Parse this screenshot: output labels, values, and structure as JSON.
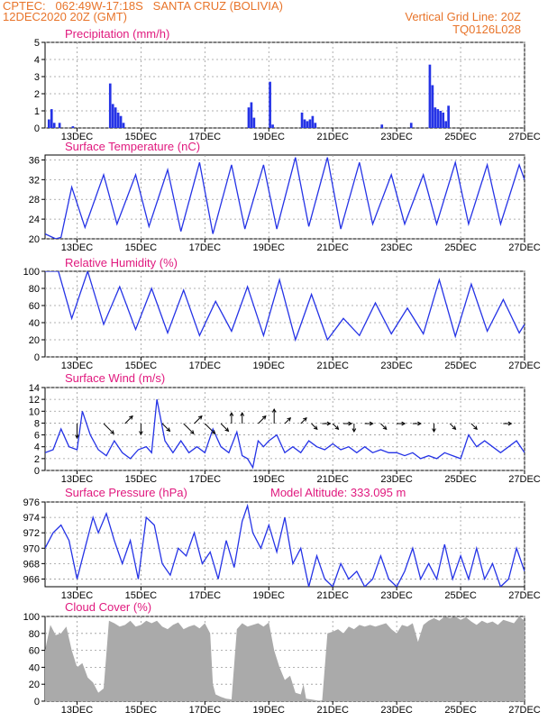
{
  "header": {
    "line1_left": "CPTEC:   062:49W-17:18S   SANTA CRUZ (BOLIVIA)",
    "line2_left": "12DEC2020 20Z (GMT)",
    "line2_right": "Vertical Grid Line: 20Z",
    "line3_right": "TQ0126L028"
  },
  "colors": {
    "header": "#e8742a",
    "title": "#e0197e",
    "series": "#2533e6",
    "cloud": "#aaaaaa",
    "grid": "#999999"
  },
  "x_ticks": [
    "13DEC",
    "15DEC",
    "17DEC",
    "19DEC",
    "21DEC",
    "23DEC",
    "25DEC",
    "27DEC"
  ],
  "chart_data": [
    {
      "type": "bar",
      "title": "Precipitation (mm/h)",
      "ylim": [
        0,
        5
      ],
      "yticks": [
        0,
        1,
        2,
        3,
        4,
        5
      ],
      "x_range": [
        0,
        180
      ],
      "grid": true,
      "points": [
        [
          1,
          0.5
        ],
        [
          2,
          1.1
        ],
        [
          3,
          0.3
        ],
        [
          5,
          0.3
        ],
        [
          10,
          0.1
        ],
        [
          24,
          2.6
        ],
        [
          25,
          1.4
        ],
        [
          26,
          1.2
        ],
        [
          27,
          0.9
        ],
        [
          28,
          0.7
        ],
        [
          29,
          0.3
        ],
        [
          76,
          1.2
        ],
        [
          77,
          1.5
        ],
        [
          78,
          0.6
        ],
        [
          84,
          2.7
        ],
        [
          85,
          0.2
        ],
        [
          96,
          0.9
        ],
        [
          97,
          0.5
        ],
        [
          98,
          0.4
        ],
        [
          99,
          0.5
        ],
        [
          100,
          0.7
        ],
        [
          101,
          0.3
        ],
        [
          126,
          0.2
        ],
        [
          137,
          0.3
        ],
        [
          144,
          3.7
        ],
        [
          145,
          2.5
        ],
        [
          146,
          1.2
        ],
        [
          147,
          1.1
        ],
        [
          148,
          1.0
        ],
        [
          149,
          0.9
        ],
        [
          150,
          0.4
        ],
        [
          151,
          1.3
        ]
      ]
    },
    {
      "type": "line",
      "title": "Surface Temperature (nC)",
      "ylim": [
        20,
        37
      ],
      "yticks": [
        20,
        24,
        28,
        32,
        36
      ],
      "x_range": [
        0,
        180
      ],
      "grid": true,
      "points": [
        [
          0,
          21
        ],
        [
          4,
          20
        ],
        [
          6,
          20.3
        ],
        [
          10,
          30.5
        ],
        [
          15,
          22.3
        ],
        [
          22,
          33
        ],
        [
          27,
          23
        ],
        [
          34,
          33
        ],
        [
          39,
          22.5
        ],
        [
          46,
          34
        ],
        [
          51,
          21.5
        ],
        [
          58,
          35.5
        ],
        [
          63,
          21
        ],
        [
          70,
          35
        ],
        [
          75,
          22
        ],
        [
          82,
          35
        ],
        [
          87,
          22
        ],
        [
          94,
          36.5
        ],
        [
          99,
          22.5
        ],
        [
          106,
          36.5
        ],
        [
          111,
          22
        ],
        [
          118,
          35.5
        ],
        [
          123,
          23
        ],
        [
          130,
          33
        ],
        [
          135,
          23
        ],
        [
          142,
          33
        ],
        [
          147,
          23
        ],
        [
          154,
          35.5
        ],
        [
          159,
          23
        ],
        [
          166,
          35
        ],
        [
          171,
          23
        ],
        [
          178,
          35
        ],
        [
          180,
          32
        ]
      ]
    },
    {
      "type": "line",
      "title": "Relative Humidity (%)",
      "ylim": [
        0,
        100
      ],
      "yticks": [
        0,
        20,
        40,
        60,
        80,
        100
      ],
      "x_range": [
        0,
        180
      ],
      "grid": true,
      "points": [
        [
          0,
          100
        ],
        [
          5,
          100
        ],
        [
          10,
          45
        ],
        [
          16,
          100
        ],
        [
          22,
          38
        ],
        [
          28,
          82
        ],
        [
          34,
          32
        ],
        [
          40,
          80
        ],
        [
          46,
          28
        ],
        [
          52,
          78
        ],
        [
          58,
          25
        ],
        [
          64,
          65
        ],
        [
          70,
          30
        ],
        [
          76,
          82
        ],
        [
          82,
          25
        ],
        [
          88,
          90
        ],
        [
          94,
          20
        ],
        [
          100,
          73
        ],
        [
          106,
          20
        ],
        [
          112,
          45
        ],
        [
          118,
          25
        ],
        [
          124,
          63
        ],
        [
          130,
          27
        ],
        [
          136,
          57
        ],
        [
          142,
          27
        ],
        [
          148,
          90
        ],
        [
          154,
          24
        ],
        [
          160,
          85
        ],
        [
          166,
          30
        ],
        [
          172,
          67
        ],
        [
          178,
          28
        ],
        [
          180,
          38
        ]
      ]
    },
    {
      "type": "line",
      "title": "Surface Wind (m/s)",
      "ylim": [
        0,
        14
      ],
      "yticks": [
        0,
        2,
        4,
        6,
        8,
        10,
        12,
        14
      ],
      "x_range": [
        0,
        180
      ],
      "grid": true,
      "points": [
        [
          0,
          3
        ],
        [
          3,
          3.5
        ],
        [
          6,
          7
        ],
        [
          9,
          4
        ],
        [
          12,
          3.5
        ],
        [
          14,
          10
        ],
        [
          17,
          6
        ],
        [
          20,
          3.5
        ],
        [
          23,
          2.5
        ],
        [
          26,
          5
        ],
        [
          29,
          3
        ],
        [
          32,
          2
        ],
        [
          35,
          3.5
        ],
        [
          38,
          4
        ],
        [
          40,
          3
        ],
        [
          42,
          12
        ],
        [
          45,
          5
        ],
        [
          48,
          3
        ],
        [
          51,
          5
        ],
        [
          54,
          3
        ],
        [
          57,
          4
        ],
        [
          60,
          3
        ],
        [
          63,
          7
        ],
        [
          66,
          4
        ],
        [
          69,
          3
        ],
        [
          72,
          6.5
        ],
        [
          74,
          2.5
        ],
        [
          76,
          2
        ],
        [
          78,
          0.5
        ],
        [
          80,
          5
        ],
        [
          82,
          4
        ],
        [
          84,
          5
        ],
        [
          87,
          6
        ],
        [
          90,
          3
        ],
        [
          93,
          4
        ],
        [
          96,
          3
        ],
        [
          99,
          5
        ],
        [
          102,
          4
        ],
        [
          105,
          3.5
        ],
        [
          108,
          4.5
        ],
        [
          111,
          3.5
        ],
        [
          114,
          4
        ],
        [
          117,
          3
        ],
        [
          120,
          4
        ],
        [
          123,
          3
        ],
        [
          126,
          3.5
        ],
        [
          129,
          3
        ],
        [
          132,
          3
        ],
        [
          135,
          2.5
        ],
        [
          138,
          3
        ],
        [
          141,
          2
        ],
        [
          144,
          2.5
        ],
        [
          147,
          2
        ],
        [
          150,
          3
        ],
        [
          153,
          2.5
        ],
        [
          156,
          2
        ],
        [
          159,
          6
        ],
        [
          162,
          4
        ],
        [
          165,
          5
        ],
        [
          168,
          4
        ],
        [
          171,
          3
        ],
        [
          174,
          4
        ],
        [
          177,
          5
        ],
        [
          180,
          3
        ]
      ]
    },
    {
      "type": "line",
      "title": "Surface Pressure (hPa)",
      "annotation": "Model Altitude: 333.095 m",
      "ylim": [
        965,
        976
      ],
      "yticks": [
        966,
        968,
        970,
        972,
        974,
        976
      ],
      "x_range": [
        0,
        180
      ],
      "grid": true,
      "points": [
        [
          0,
          970
        ],
        [
          3,
          972
        ],
        [
          6,
          973
        ],
        [
          9,
          971
        ],
        [
          12,
          966
        ],
        [
          15,
          970
        ],
        [
          18,
          974
        ],
        [
          20,
          972
        ],
        [
          23,
          974.5
        ],
        [
          26,
          971
        ],
        [
          29,
          968
        ],
        [
          32,
          971
        ],
        [
          35,
          966
        ],
        [
          38,
          974
        ],
        [
          41,
          973
        ],
        [
          44,
          968
        ],
        [
          47,
          966.5
        ],
        [
          50,
          970
        ],
        [
          53,
          969
        ],
        [
          56,
          972
        ],
        [
          59,
          968
        ],
        [
          62,
          969.5
        ],
        [
          65,
          966
        ],
        [
          68,
          971
        ],
        [
          71,
          967.5
        ],
        [
          74,
          973.5
        ],
        [
          76,
          975.5
        ],
        [
          78,
          972
        ],
        [
          81,
          970
        ],
        [
          84,
          973
        ],
        [
          87,
          969.5
        ],
        [
          90,
          974
        ],
        [
          93,
          968
        ],
        [
          96,
          970
        ],
        [
          99,
          965
        ],
        [
          102,
          969
        ],
        [
          105,
          966
        ],
        [
          108,
          965
        ],
        [
          111,
          968
        ],
        [
          114,
          966
        ],
        [
          117,
          967
        ],
        [
          120,
          965
        ],
        [
          123,
          966
        ],
        [
          126,
          969
        ],
        [
          129,
          966
        ],
        [
          132,
          965
        ],
        [
          135,
          967
        ],
        [
          138,
          970
        ],
        [
          141,
          966
        ],
        [
          144,
          968
        ],
        [
          147,
          966
        ],
        [
          150,
          970.5
        ],
        [
          153,
          966
        ],
        [
          156,
          969
        ],
        [
          159,
          966
        ],
        [
          162,
          970
        ],
        [
          165,
          966
        ],
        [
          168,
          968
        ],
        [
          171,
          965
        ],
        [
          174,
          966
        ],
        [
          177,
          970
        ],
        [
          180,
          967
        ]
      ]
    },
    {
      "type": "area",
      "title": "Cloud Cover (%)",
      "ylim": [
        0,
        100
      ],
      "yticks": [
        0,
        20,
        40,
        60,
        80,
        100
      ],
      "x_range": [
        0,
        180
      ],
      "grid": true,
      "points": [
        [
          0,
          60
        ],
        [
          2,
          90
        ],
        [
          4,
          78
        ],
        [
          6,
          80
        ],
        [
          8,
          88
        ],
        [
          10,
          60
        ],
        [
          12,
          40
        ],
        [
          14,
          45
        ],
        [
          16,
          28
        ],
        [
          18,
          22
        ],
        [
          20,
          10
        ],
        [
          22,
          15
        ],
        [
          24,
          95
        ],
        [
          26,
          92
        ],
        [
          28,
          88
        ],
        [
          30,
          90
        ],
        [
          32,
          95
        ],
        [
          34,
          88
        ],
        [
          36,
          90
        ],
        [
          38,
          95
        ],
        [
          40,
          92
        ],
        [
          42,
          95
        ],
        [
          44,
          88
        ],
        [
          46,
          85
        ],
        [
          48,
          90
        ],
        [
          50,
          93
        ],
        [
          52,
          85
        ],
        [
          54,
          88
        ],
        [
          56,
          90
        ],
        [
          58,
          86
        ],
        [
          60,
          92
        ],
        [
          62,
          80
        ],
        [
          63,
          20
        ],
        [
          64,
          8
        ],
        [
          66,
          5
        ],
        [
          68,
          3
        ],
        [
          70,
          2
        ],
        [
          72,
          85
        ],
        [
          74,
          92
        ],
        [
          76,
          88
        ],
        [
          78,
          90
        ],
        [
          80,
          92
        ],
        [
          82,
          88
        ],
        [
          84,
          93
        ],
        [
          86,
          60
        ],
        [
          88,
          40
        ],
        [
          90,
          25
        ],
        [
          92,
          30
        ],
        [
          94,
          10
        ],
        [
          96,
          8
        ],
        [
          97,
          20
        ],
        [
          98,
          3
        ],
        [
          100,
          2
        ],
        [
          102,
          1
        ],
        [
          104,
          0
        ],
        [
          106,
          80
        ],
        [
          108,
          82
        ],
        [
          110,
          85
        ],
        [
          112,
          80
        ],
        [
          114,
          88
        ],
        [
          116,
          85
        ],
        [
          118,
          90
        ],
        [
          120,
          88
        ],
        [
          122,
          90
        ],
        [
          124,
          88
        ],
        [
          126,
          90
        ],
        [
          128,
          92
        ],
        [
          130,
          85
        ],
        [
          132,
          80
        ],
        [
          134,
          90
        ],
        [
          136,
          88
        ],
        [
          138,
          92
        ],
        [
          140,
          70
        ],
        [
          142,
          90
        ],
        [
          144,
          95
        ],
        [
          146,
          98
        ],
        [
          148,
          95
        ],
        [
          150,
          100
        ],
        [
          152,
          98
        ],
        [
          154,
          100
        ],
        [
          156,
          96
        ],
        [
          158,
          99
        ],
        [
          160,
          94
        ],
        [
          162,
          90
        ],
        [
          164,
          95
        ],
        [
          166,
          92
        ],
        [
          168,
          94
        ],
        [
          170,
          90
        ],
        [
          172,
          96
        ],
        [
          174,
          94
        ],
        [
          176,
          92
        ],
        [
          178,
          100
        ],
        [
          180,
          95
        ]
      ]
    }
  ],
  "wind_arrows": [
    {
      "t": 12,
      "dir": "S",
      "speed": "long"
    },
    {
      "t": 22,
      "dir": "SE",
      "speed": "long"
    },
    {
      "t": 30,
      "dir": "NE",
      "speed": "mid"
    },
    {
      "t": 36,
      "dir": "S",
      "speed": "mid"
    },
    {
      "t": 44,
      "dir": "SE",
      "speed": "mid"
    },
    {
      "t": 52,
      "dir": "SE",
      "speed": "long"
    },
    {
      "t": 56,
      "dir": "NE",
      "speed": "mid"
    },
    {
      "t": 60,
      "dir": "SE",
      "speed": "long"
    },
    {
      "t": 66,
      "dir": "SE",
      "speed": "mid"
    },
    {
      "t": 70,
      "dir": "N",
      "speed": "mid"
    },
    {
      "t": 74,
      "dir": "N",
      "speed": "mid"
    },
    {
      "t": 80,
      "dir": "NE",
      "speed": "mid"
    },
    {
      "t": 86,
      "dir": "N",
      "speed": "long"
    },
    {
      "t": 90,
      "dir": "NE",
      "speed": "short"
    },
    {
      "t": 96,
      "dir": "NE",
      "speed": "short"
    },
    {
      "t": 100,
      "dir": "SE",
      "speed": "short"
    },
    {
      "t": 104,
      "dir": "E",
      "speed": "short"
    },
    {
      "t": 108,
      "dir": "SE",
      "speed": "short"
    },
    {
      "t": 112,
      "dir": "E",
      "speed": "short"
    },
    {
      "t": 116,
      "dir": "S",
      "speed": "short"
    },
    {
      "t": 120,
      "dir": "E",
      "speed": "short"
    },
    {
      "t": 126,
      "dir": "SE",
      "speed": "short"
    },
    {
      "t": 132,
      "dir": "E",
      "speed": "short"
    },
    {
      "t": 138,
      "dir": "E",
      "speed": "short"
    },
    {
      "t": 146,
      "dir": "S",
      "speed": "short"
    },
    {
      "t": 152,
      "dir": "SE",
      "speed": "short"
    },
    {
      "t": 160,
      "dir": "SE",
      "speed": "short"
    },
    {
      "t": 172,
      "dir": "E",
      "speed": "short"
    }
  ]
}
